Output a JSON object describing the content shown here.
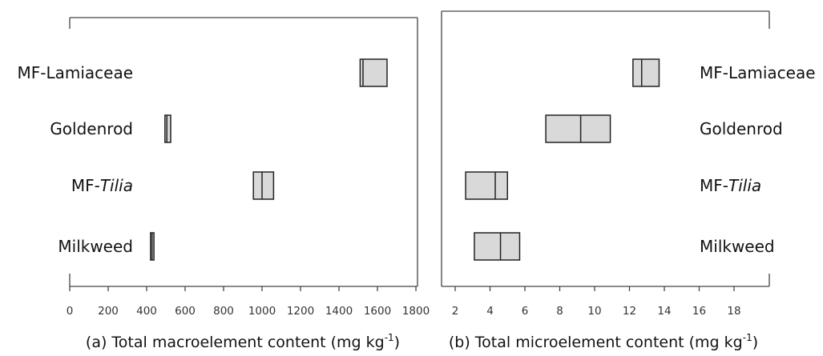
{
  "chart_data": [
    {
      "type": "box",
      "xlabel": "(a) Total macroelement content (mg kg",
      "xlabel_sup": "-1",
      "xlabel_end": ")",
      "xlim": [
        0,
        1800
      ],
      "ticks": [
        "0",
        "200",
        "400",
        "600",
        "800",
        "1000",
        "1200",
        "1400",
        "1600",
        "1800"
      ],
      "categories": [
        "MF-Lamiaceae",
        "Goldenrod",
        "MF-",
        "Milkweed"
      ],
      "category_italic": [
        "",
        "",
        "Tilia",
        ""
      ],
      "boxes": [
        {
          "q1": 1510,
          "median": 1525,
          "q3": 1650
        },
        {
          "q1": 495,
          "median": 505,
          "q3": 525
        },
        {
          "q1": 955,
          "median": 1000,
          "q3": 1060
        },
        {
          "q1": 420,
          "median": 428,
          "q3": 438
        }
      ]
    },
    {
      "type": "box",
      "xlabel": "(b) Total microelement content (mg kg",
      "xlabel_sup": "-1",
      "xlabel_end": ")",
      "xlim": [
        1.3,
        20
      ],
      "ticks": [
        "2",
        "4",
        "6",
        "8",
        "10",
        "12",
        "14",
        "16",
        "18"
      ],
      "categories": [
        "MF-Lamiaceae",
        "Goldenrod",
        "MF-",
        "Milkweed"
      ],
      "category_italic": [
        "",
        "",
        "Tilia",
        ""
      ],
      "boxes": [
        {
          "q1": 12.2,
          "median": 12.7,
          "q3": 13.7
        },
        {
          "q1": 7.2,
          "median": 9.2,
          "q3": 10.9
        },
        {
          "q1": 2.6,
          "median": 4.3,
          "q3": 5.0
        },
        {
          "q1": 3.1,
          "median": 4.6,
          "q3": 5.7
        }
      ]
    }
  ]
}
